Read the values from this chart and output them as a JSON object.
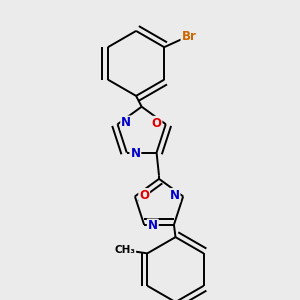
{
  "background_color": "#ebebeb",
  "bond_color": "#000000",
  "atom_colors": {
    "Br": "#cc6600",
    "O": "#dd0000",
    "N": "#0000cc",
    "C": "#000000"
  },
  "lw": 1.4,
  "dbo": 0.018,
  "fs": 8.5
}
